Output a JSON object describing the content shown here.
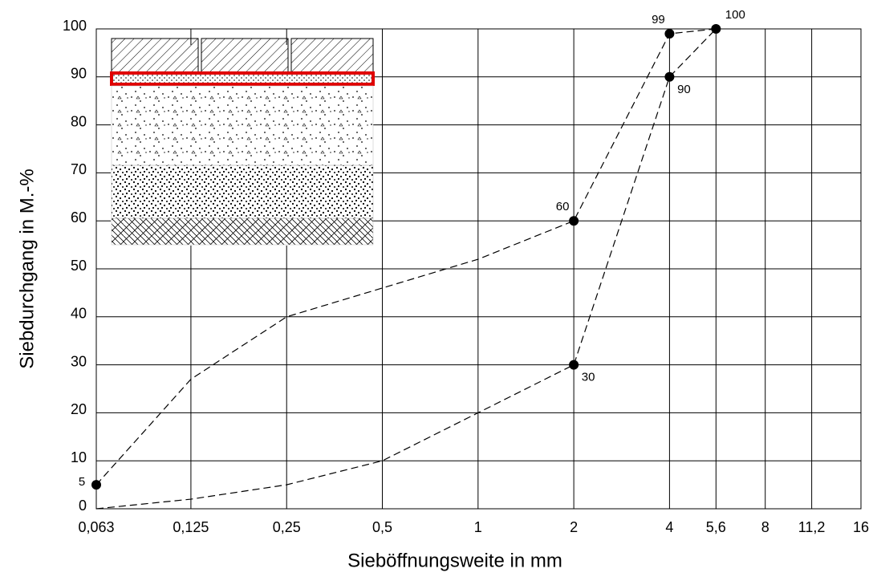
{
  "chart_data": {
    "type": "line",
    "x_label": "Sieböffnungsweite in mm",
    "y_label": "Siebdurchgang in M.-%",
    "xscale": "log",
    "grid": true,
    "xlim": [
      0.063,
      16
    ],
    "ylim": [
      0,
      100
    ],
    "xticks": [
      {
        "value": 0.063,
        "label": "0,063"
      },
      {
        "value": 0.125,
        "label": "0,125"
      },
      {
        "value": 0.25,
        "label": "0,25"
      },
      {
        "value": 0.5,
        "label": "0,5"
      },
      1,
      2,
      4,
      {
        "value": 5.6,
        "label": "5,6"
      },
      8,
      {
        "value": 11.2,
        "label": "11,2"
      },
      16
    ],
    "yticks": [
      0,
      10,
      20,
      30,
      40,
      50,
      60,
      70,
      80,
      90,
      100
    ],
    "series": [
      {
        "color": "#000000",
        "x": [
          0.063,
          0.125,
          0.25,
          0.5,
          1,
          2,
          4,
          5.6
        ],
        "values": [
          5,
          27,
          40,
          46,
          52,
          60,
          99,
          100
        ],
        "value_labels": [
          "5",
          null,
          null,
          null,
          null,
          "60",
          "99",
          "100"
        ]
      },
      {
        "color": "#000000",
        "x": [
          0.063,
          0.125,
          0.25,
          0.5,
          1,
          2,
          4,
          5.6
        ],
        "values": [
          0,
          2,
          5,
          10,
          20,
          30,
          90,
          100
        ],
        "value_labels": [
          null,
          null,
          null,
          null,
          null,
          "30",
          "90",
          null
        ]
      }
    ]
  }
}
